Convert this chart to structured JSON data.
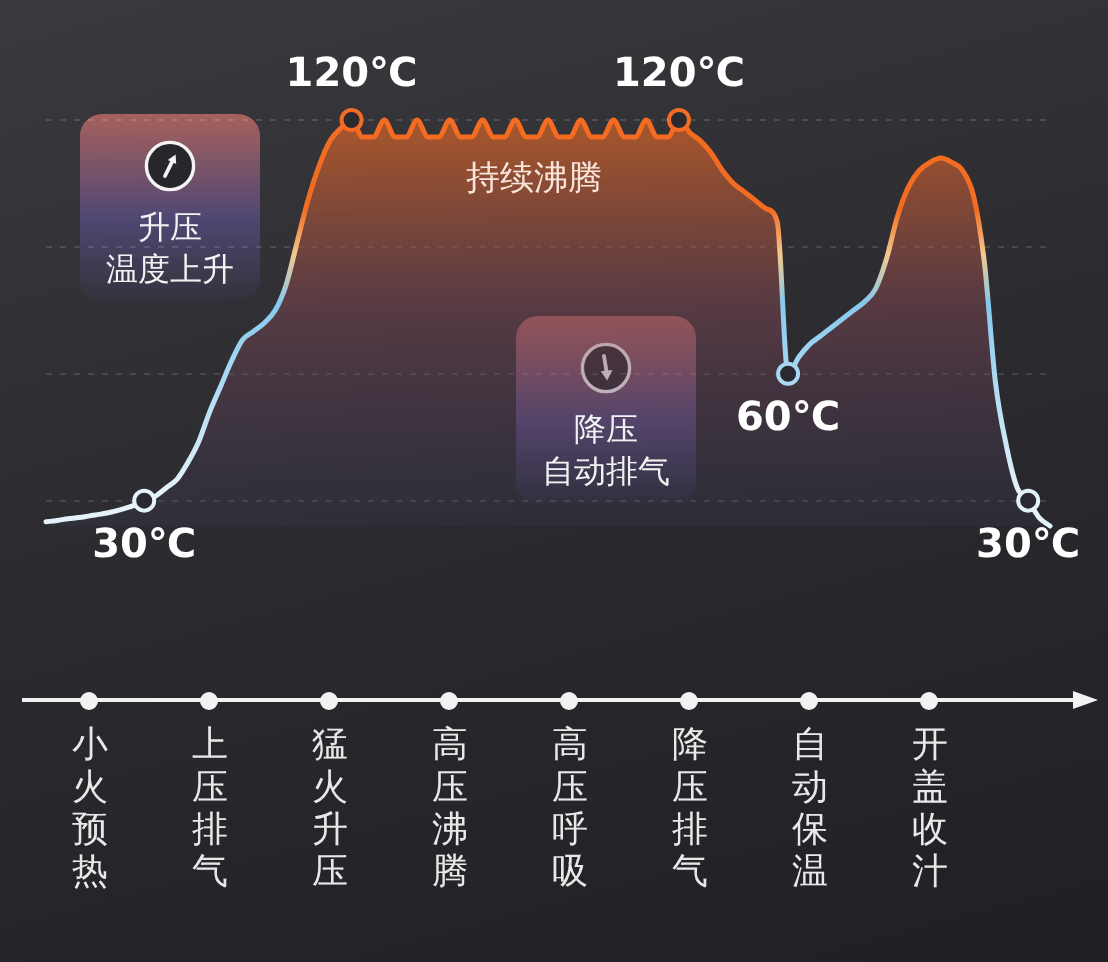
{
  "chart_data": {
    "type": "area",
    "categories": [
      null,
      null,
      null,
      null,
      "小火预热",
      null,
      null,
      null,
      null,
      null,
      null,
      null,
      null,
      null,
      null,
      "上压排气",
      null,
      null,
      null,
      null,
      null,
      null,
      null,
      null,
      null,
      null,
      "猛火升压",
      null,
      null,
      null,
      null,
      null,
      null,
      null,
      null,
      null,
      null,
      "高压沸腾",
      null,
      null,
      null,
      null,
      null,
      null,
      null,
      null,
      null,
      null,
      "高压呼吸",
      null,
      null,
      null,
      null,
      null,
      null,
      null,
      null,
      null,
      null,
      "降压排气",
      null,
      null,
      null,
      null,
      null,
      null,
      null,
      null,
      null,
      null,
      "自动保温",
      null,
      null,
      null,
      null,
      null,
      null,
      null,
      null,
      null,
      null,
      "开盖收汁",
      null,
      null,
      null,
      null,
      null,
      null,
      null,
      null,
      null,
      null,
      null
    ],
    "series": [
      {
        "color": "#f36c21",
        "values": [
          25,
          25.3,
          25.7,
          26,
          26.4,
          26.8,
          27.3,
          28,
          28.8,
          30,
          31,
          33,
          35,
          39,
          44,
          51,
          57,
          63,
          68,
          70,
          72,
          75,
          81,
          91,
          101,
          109,
          115,
          118,
          120,
          116,
          116,
          120,
          116,
          116,
          120,
          116,
          116,
          120,
          116,
          116,
          120,
          116,
          116,
          120,
          116,
          116,
          120,
          116,
          116,
          120,
          116,
          116,
          120,
          116,
          116,
          120,
          116,
          116,
          120,
          117,
          115,
          112,
          108,
          105,
          103,
          101,
          99,
          96,
          60,
          64,
          67,
          69,
          71,
          73,
          75,
          77,
          80,
          87,
          97,
          104,
          108,
          110,
          111,
          110,
          108,
          102,
          86,
          58,
          43,
          33,
          30,
          26,
          24
        ],
        "value_labels": [
          null,
          null,
          null,
          null,
          null,
          null,
          null,
          null,
          null,
          "30℃",
          null,
          null,
          null,
          null,
          null,
          null,
          null,
          null,
          null,
          null,
          null,
          null,
          null,
          null,
          null,
          null,
          null,
          null,
          "120℃",
          null,
          null,
          null,
          null,
          null,
          null,
          null,
          null,
          null,
          null,
          null,
          null,
          null,
          null,
          null,
          null,
          null,
          null,
          null,
          null,
          null,
          null,
          null,
          null,
          null,
          null,
          null,
          null,
          null,
          "120℃",
          null,
          null,
          null,
          null,
          null,
          null,
          null,
          null,
          null,
          "60℃",
          null,
          null,
          null,
          null,
          null,
          null,
          null,
          null,
          null,
          null,
          null,
          null,
          null,
          null,
          null,
          null,
          null,
          null,
          null,
          null,
          null,
          "30℃",
          null,
          null
        ]
      }
    ],
    "yticks": [
      {
        "value": 30,
        "label": null
      },
      {
        "value": 60,
        "label": null
      },
      {
        "value": 90,
        "label": null
      },
      {
        "value": 120,
        "label": null
      }
    ],
    "tick_labels": "x",
    "grid": "y",
    "annotations": [
      "升压",
      "温度上升",
      "持续沸腾",
      "降压",
      "自动排气"
    ]
  }
}
